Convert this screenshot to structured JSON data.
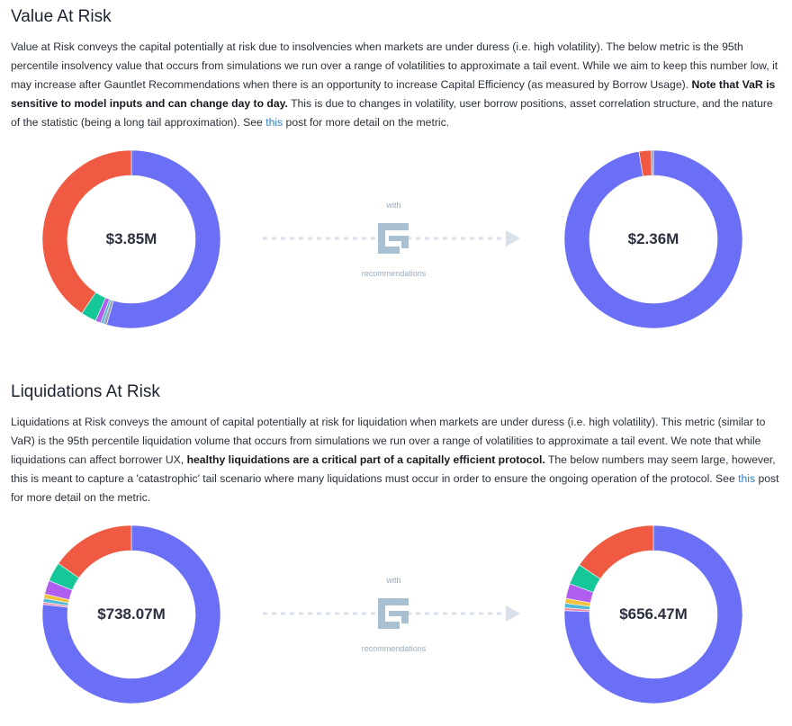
{
  "colors": {
    "blue": "#6b6ff5",
    "red": "#f05a42",
    "green": "#16c79a",
    "purple": "#b05ef0",
    "yellow": "#f3c23b",
    "cyan": "#4fb9d8",
    "pink": "#ee8caa",
    "gray": "#9aa0b0",
    "logo": "#a9bfd2"
  },
  "var_section": {
    "title": "Value At Risk",
    "p1": "Value at Risk conveys the capital potentially at risk due to insolvencies when markets are under duress (i.e. high volatility). The below metric is the 95th percentile insolvency value that occurs from simulations we run over a range of volatilities to approximate a tail event. While we aim to keep this number low, it may increase after Gauntlet Recommendations when there is an opportunity to increase Capital Efficiency (as measured by Borrow Usage). ",
    "bold": "Note that VaR is sensitive to model inputs and can change day to day.",
    "p2": " This is due to changes in volatility, user borrow positions, asset correlation structure, and the nature of the statistic (being a long tail approximation). See ",
    "link": "this",
    "p3": " post for more detail on the metric."
  },
  "liq_section": {
    "title": "Liquidations At Risk",
    "p1": "Liquidations at Risk conveys the amount of capital potentially at risk for liquidation when markets are under duress (i.e. high volatility). This metric (similar to VaR) is the 95th percentile liquidation volume that occurs from simulations we run over a range of volatilities to approximate a tail event. We note that while liquidations can affect borrower UX, ",
    "bold": "healthy liquidations are a critical part of a capitally efficient protocol.",
    "p2": " The below numbers may seem large, however, this is meant to capture a 'catastrophic' tail scenario where many liquidations must occur in order to ensure the ongoing operation of the protocol. See ",
    "link": "this",
    "p3": " post for more detail on the metric."
  },
  "recommendation": {
    "with": "with",
    "label": "recommendations"
  },
  "chart_data": [
    {
      "type": "pie",
      "center_label": "$3.85M",
      "slices": [
        {
          "value": 54.5,
          "color": "blue"
        },
        {
          "value": 0.6,
          "color": "gray"
        },
        {
          "value": 0.5,
          "color": "cyan"
        },
        {
          "value": 1.0,
          "color": "purple"
        },
        {
          "value": 2.8,
          "color": "green"
        },
        {
          "value": 40.6,
          "color": "red"
        }
      ]
    },
    {
      "type": "pie",
      "center_label": "$2.36M",
      "slices": [
        {
          "value": 97.4,
          "color": "blue"
        },
        {
          "value": 2.2,
          "color": "red"
        },
        {
          "value": 0.4,
          "color": "gray"
        }
      ]
    },
    {
      "type": "pie",
      "center_label": "$738.07M",
      "slices": [
        {
          "value": 76.8,
          "color": "blue"
        },
        {
          "value": 0.4,
          "color": "pink"
        },
        {
          "value": 0.7,
          "color": "cyan"
        },
        {
          "value": 0.8,
          "color": "yellow"
        },
        {
          "value": 2.5,
          "color": "purple"
        },
        {
          "value": 3.5,
          "color": "green"
        },
        {
          "value": 15.3,
          "color": "red"
        }
      ]
    },
    {
      "type": "pie",
      "center_label": "$656.47M",
      "slices": [
        {
          "value": 75.7,
          "color": "blue"
        },
        {
          "value": 0.5,
          "color": "pink"
        },
        {
          "value": 0.8,
          "color": "cyan"
        },
        {
          "value": 0.9,
          "color": "yellow"
        },
        {
          "value": 2.7,
          "color": "purple"
        },
        {
          "value": 3.8,
          "color": "green"
        },
        {
          "value": 15.6,
          "color": "red"
        }
      ]
    }
  ]
}
